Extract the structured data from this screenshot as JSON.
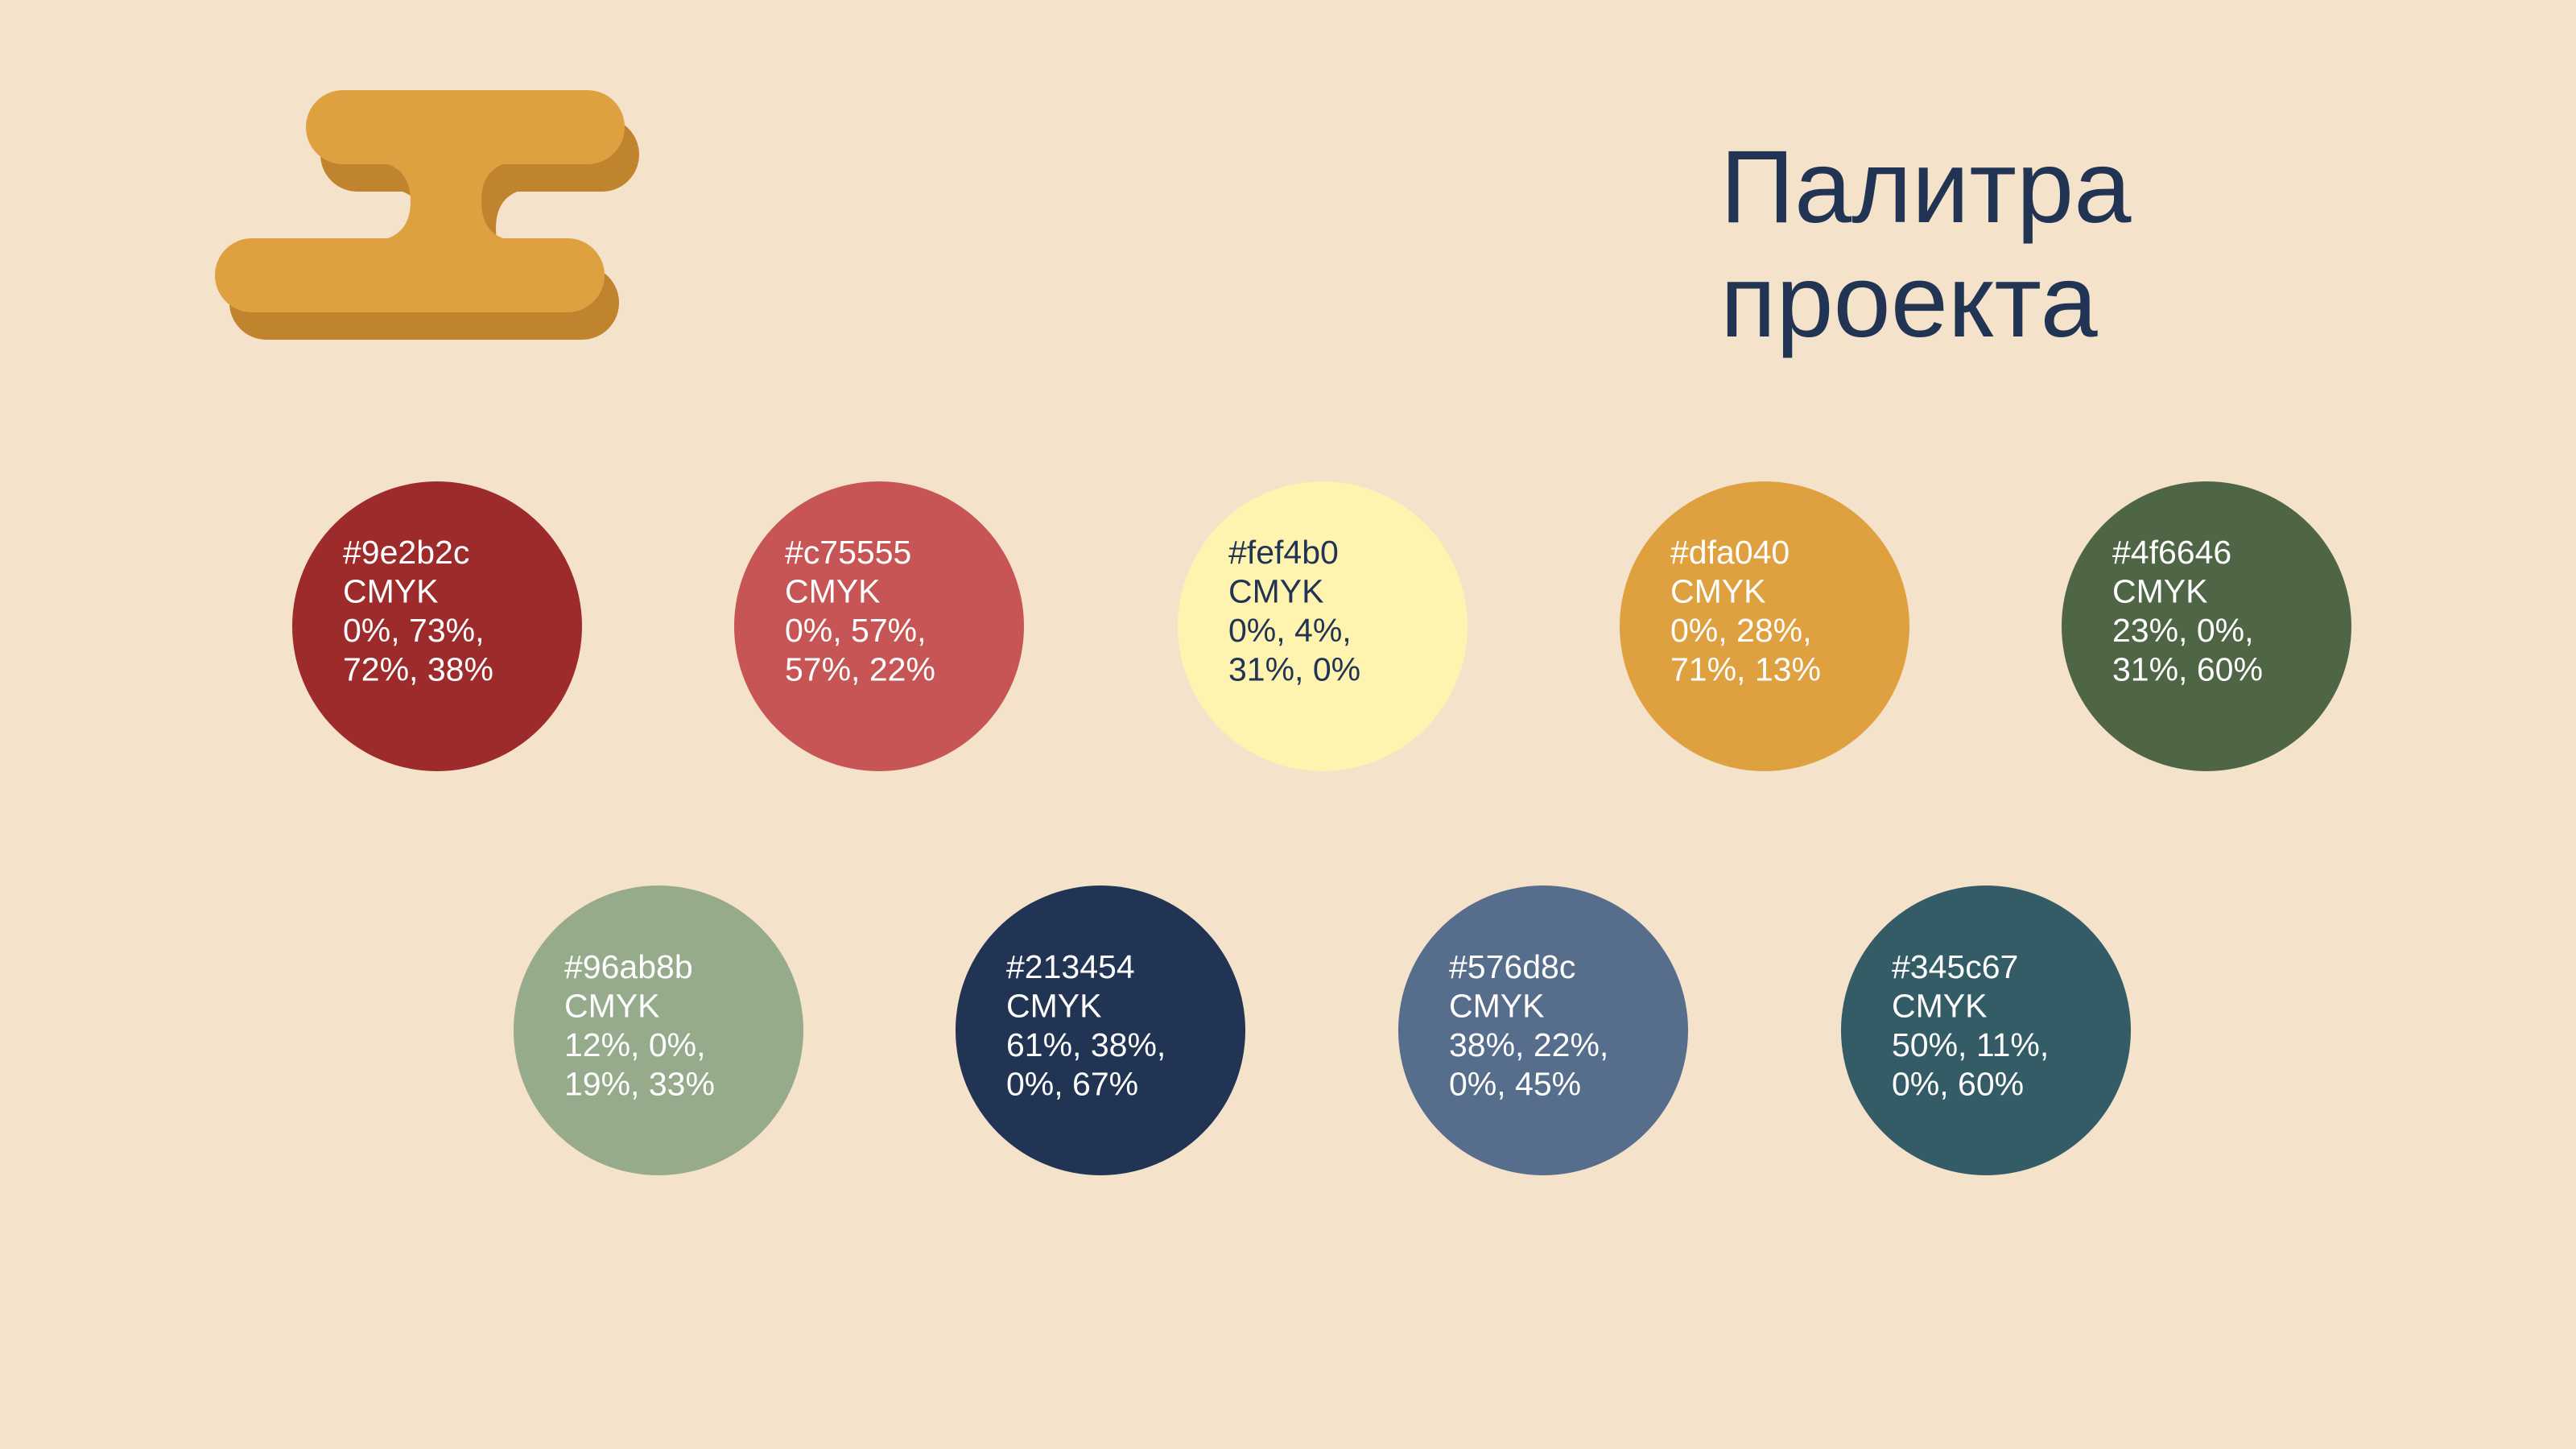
{
  "header": {
    "title_lines": [
      "Палитра",
      "проекта"
    ]
  },
  "swatches": [
    {
      "label": "#9e2b2c",
      "lines": [
        "CMYK",
        "0%, 73%,",
        "72%, 38%"
      ],
      "text_color": "#ffffff"
    },
    {
      "label": "#c75555",
      "lines": [
        "CMYK",
        "0%, 57%,",
        "57%, 22%"
      ],
      "text_color": "#ffffff"
    },
    {
      "label": "#fef4b0",
      "lines": [
        "CMYK",
        "0%, 4%,",
        "31%, 0%"
      ],
      "text_color": "#213454"
    },
    {
      "label": "#dfa040",
      "lines": [
        "CMYK",
        "0%, 28%,",
        "71%, 13%"
      ],
      "text_color": "#ffffff"
    },
    {
      "label": "#4f6646",
      "lines": [
        "CMYK",
        "23%, 0%,",
        "31%, 60%"
      ],
      "text_color": "#ffffff"
    },
    {
      "label": "#96ab8b",
      "lines": [
        "CMYK",
        "12%, 0%,",
        "19%, 33%"
      ],
      "text_color": "#ffffff"
    },
    {
      "label": "#213454",
      "lines": [
        "CMYK",
        "61%, 38%,",
        "0%, 67%"
      ],
      "text_color": "#ffffff"
    },
    {
      "label": "#576d8c",
      "lines": [
        "CMYK",
        "38%, 22%,",
        "0%, 45%"
      ],
      "text_color": "#ffffff"
    },
    {
      "label": "#345c67",
      "lines": [
        "CMYK",
        "50%, 11%,",
        "0%, 60%"
      ],
      "text_color": "#ffffff"
    }
  ]
}
